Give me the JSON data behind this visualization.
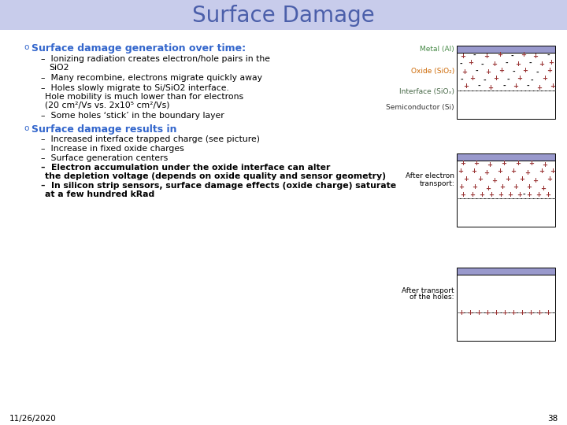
{
  "title": "Surface Damage",
  "title_color": "#4B5FAA",
  "title_fontsize": 20,
  "bg_color": "#C8CCEB",
  "date": "11/26/2020",
  "page": "38",
  "header_color": "#3366CC",
  "text_color": "#000000",
  "diagram_label_metal": "Metal (Al)",
  "diagram_label_oxide": "Oxide (SiO₂)",
  "diagram_label_interface": "Interface (SiOₓ)",
  "diagram_label_semi": "Semiconductor (Si)",
  "diagram_label2a": "After electron",
  "diagram_label2b": "transport:",
  "diagram_label3a": "After transport",
  "diagram_label3b": "of the holes:",
  "metal_color": "#9999CC",
  "plus_color": "#993333",
  "minus_color": "#111111",
  "label_metal_color": "#448844",
  "label_oxide_color": "#CC6600",
  "label_interface_color": "#446644",
  "label_semi_color": "#333333"
}
